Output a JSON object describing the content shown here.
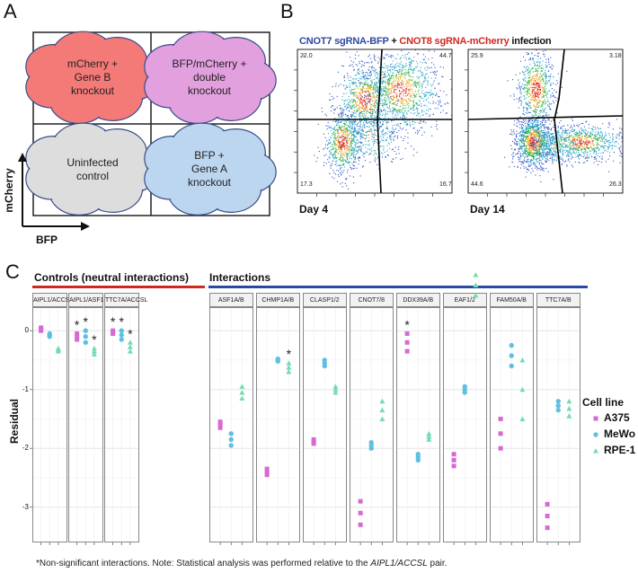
{
  "panel_a": {
    "letter": "A",
    "quadrants": {
      "top_left": "mCherry +\nGene B\nknockout",
      "top_right": "BFP/mCherry +\ndouble\nknockout",
      "bottom_left": "Uninfected\ncontrol",
      "bottom_right": "BFP +\nGene A\nknockout"
    },
    "y_axis": "mCherry",
    "x_axis": "BFP",
    "colors": {
      "top_left": "#f47a78",
      "top_right": "#e2a0de",
      "bottom_left": "#dddddd",
      "bottom_right": "#bcd6ef"
    }
  },
  "panel_b": {
    "letter": "B",
    "title_part1": "CNOT7 sgRNA-BFP",
    "title_plus1": " + ",
    "title_part2": "CNOT8 sgRNA-mCherry",
    "title_part3": " infection",
    "title_colors": {
      "part1": "#2b49a3",
      "part2": "#d2271f"
    },
    "plots": [
      {
        "day": "Day 4",
        "tl": "22.0",
        "tr": "44.7",
        "bl": "17.3",
        "br": "16.7"
      },
      {
        "day": "Day 14",
        "tl": "25.9",
        "tr": "3.18",
        "bl": "44.6",
        "br": "26.3"
      }
    ]
  },
  "panel_c": {
    "letter": "C",
    "controls_label": "Controls (neutral interactions)",
    "interactions_label": "Interactions",
    "y_label": "Residual",
    "yticks": [
      "0",
      "-1",
      "-2",
      "-3"
    ],
    "legend": {
      "title": "Cell line",
      "items": [
        {
          "name": "A375",
          "color": "#d66ad3",
          "shape": "square"
        },
        {
          "name": "MeWo",
          "color": "#5ec0e0",
          "shape": "circle"
        },
        {
          "name": "RPE-1",
          "color": "#73dcb0",
          "shape": "triangle"
        }
      ]
    },
    "footnote_pre": "*Non-significant interactions. Note: Statistical analysis was performed relative to the ",
    "footnote_italic": "AIPL1/ACCSL",
    "footnote_post": " pair."
  },
  "chart_data": {
    "type": "scatter",
    "title": "",
    "xlabel": "",
    "ylabel": "Residual",
    "ylim": [
      -3.6,
      0.4
    ],
    "series_names": [
      "A375",
      "MeWo",
      "RPE-1"
    ],
    "facets": [
      {
        "name": "AIPL1/ACCSL",
        "group": "control",
        "values": [
          [
            0.05,
            0.0
          ],
          [
            -0.05,
            -0.1
          ],
          [
            -0.3,
            -0.35
          ]
        ],
        "stars": [
          false,
          false,
          false
        ]
      },
      {
        "name": "AIPL1/ASF1B",
        "group": "control",
        "values": [
          [
            -0.05,
            -0.15
          ],
          [
            0.0,
            -0.2
          ],
          [
            -0.3,
            -0.4
          ]
        ],
        "stars": [
          true,
          true,
          true
        ]
      },
      {
        "name": "TTC7A/ACCSL",
        "group": "control",
        "values": [
          [
            0.0,
            -0.05
          ],
          [
            0.0,
            -0.15
          ],
          [
            -0.2,
            -0.35
          ]
        ],
        "stars": [
          true,
          true,
          true
        ]
      },
      {
        "name": "ASF1A/B",
        "group": "interaction",
        "values": [
          [
            -1.55,
            -1.65
          ],
          [
            -1.75,
            -1.95
          ],
          [
            -0.95,
            -1.15
          ]
        ],
        "stars": [
          false,
          false,
          false
        ]
      },
      {
        "name": "CHMP1A/B",
        "group": "interaction",
        "values": [
          [
            -2.35,
            -2.45
          ],
          [
            -0.48,
            -0.52
          ],
          [
            -0.55,
            -0.7
          ]
        ],
        "stars": [
          false,
          false,
          true
        ]
      },
      {
        "name": "CLASP1/2",
        "group": "interaction",
        "values": [
          [
            -1.85,
            -1.92
          ],
          [
            -0.5,
            -0.6
          ],
          [
            -0.95,
            -1.05
          ]
        ],
        "stars": [
          false,
          false,
          false
        ]
      },
      {
        "name": "CNOT7/8",
        "group": "interaction",
        "values": [
          [
            -2.9,
            -3.3
          ],
          [
            -1.9,
            -2.0
          ],
          [
            -1.2,
            -1.5
          ]
        ],
        "stars": [
          false,
          false,
          false
        ]
      },
      {
        "name": "DDX39A/B",
        "group": "interaction",
        "values": [
          [
            -0.05,
            -0.35
          ],
          [
            -2.1,
            -2.2
          ],
          [
            -1.75,
            -1.85
          ]
        ],
        "stars": [
          true,
          false,
          false
        ]
      },
      {
        "name": "EAF1/2",
        "group": "interaction",
        "values": [
          [
            -2.1,
            -2.3
          ],
          [
            -0.95,
            -1.05
          ],
          [
            0.6,
            0.95
          ]
        ],
        "stars": [
          false,
          false,
          false
        ]
      },
      {
        "name": "FAM50A/B",
        "group": "interaction",
        "values": [
          [
            -1.5,
            -2.0
          ],
          [
            -0.25,
            -0.6
          ],
          [
            -0.5,
            -1.5
          ]
        ],
        "stars": [
          false,
          false,
          false
        ]
      },
      {
        "name": "TTC7A/B",
        "group": "interaction",
        "values": [
          [
            -2.95,
            -3.35
          ],
          [
            -1.2,
            -1.35
          ],
          [
            -1.2,
            -1.45
          ]
        ],
        "stars": [
          false,
          false,
          false
        ]
      }
    ]
  }
}
